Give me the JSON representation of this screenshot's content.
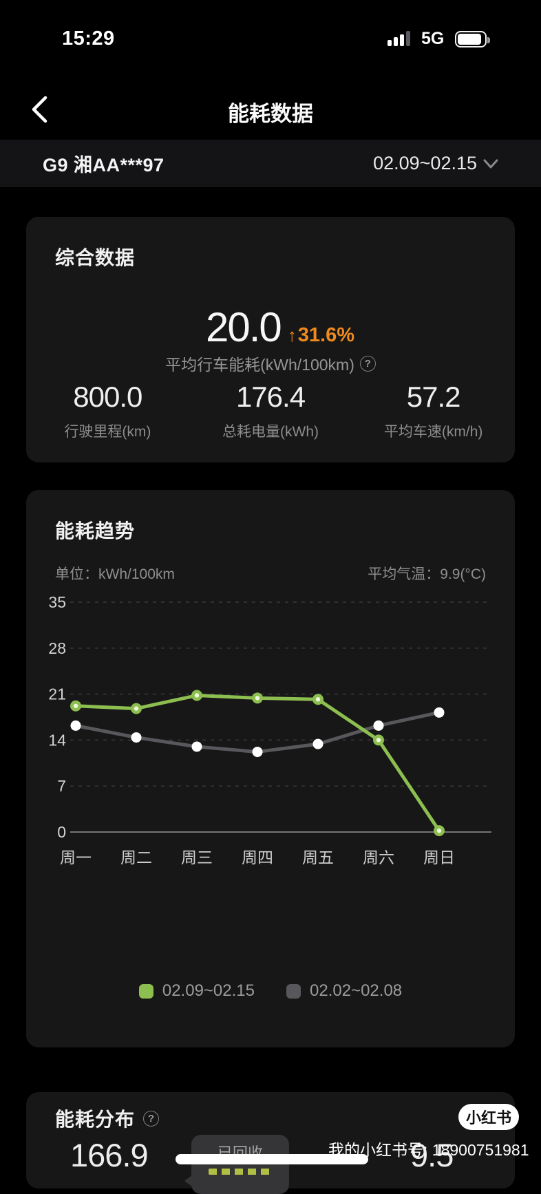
{
  "status_bar": {
    "time": "15:29",
    "network": "5G"
  },
  "header": {
    "title": "能耗数据"
  },
  "vehicle_bar": {
    "vehicle": "G9 湘AA***97",
    "date_range": "02.09~02.15"
  },
  "summary_card": {
    "title": "综合数据",
    "main_value": "20.0",
    "delta_arrow": "↑",
    "delta_value": "31.6%",
    "main_label": "平均行车能耗(kWh/100km)",
    "help_icon": "?",
    "stats": [
      {
        "value": "800.0",
        "label": "行驶里程(km)"
      },
      {
        "value": "176.4",
        "label": "总耗电量(kWh)"
      },
      {
        "value": "57.2",
        "label": "平均车速(km/h)"
      }
    ]
  },
  "trend_card": {
    "title": "能耗趋势",
    "unit_label": "单位：kWh/100km",
    "temp_label": "平均气温：9.9(°C)"
  },
  "chart_data": {
    "type": "line",
    "title": "能耗趋势",
    "unit": "kWh/100km",
    "categories": [
      "周一",
      "周二",
      "周三",
      "周四",
      "周五",
      "周六",
      "周日"
    ],
    "series": [
      {
        "name": "02.09~02.15",
        "color": "#8dbe50",
        "values": [
          19.2,
          18.8,
          20.8,
          20.4,
          20.2,
          14.0,
          0.2
        ]
      },
      {
        "name": "02.02~02.08",
        "color": "#58585c",
        "values": [
          16.2,
          14.4,
          13.0,
          12.2,
          13.4,
          16.2,
          18.2
        ]
      }
    ],
    "ylim": [
      0,
      35
    ],
    "yticks": [
      35,
      28,
      21,
      14,
      7,
      0
    ],
    "grid": "dashed-horizontal",
    "legend_position": "bottom"
  },
  "distribution_card": {
    "title": "能耗分布",
    "help_icon": "?",
    "left_value": "166.9",
    "right_value": "9.5",
    "tooltip_label": "已回收"
  },
  "watermark": {
    "badge": "小红书",
    "text": "我的小红书号: 18900751981"
  },
  "colors": {
    "accent_orange": "#ef8a1e",
    "series_green": "#8dbe50",
    "series_gray": "#58585c"
  }
}
